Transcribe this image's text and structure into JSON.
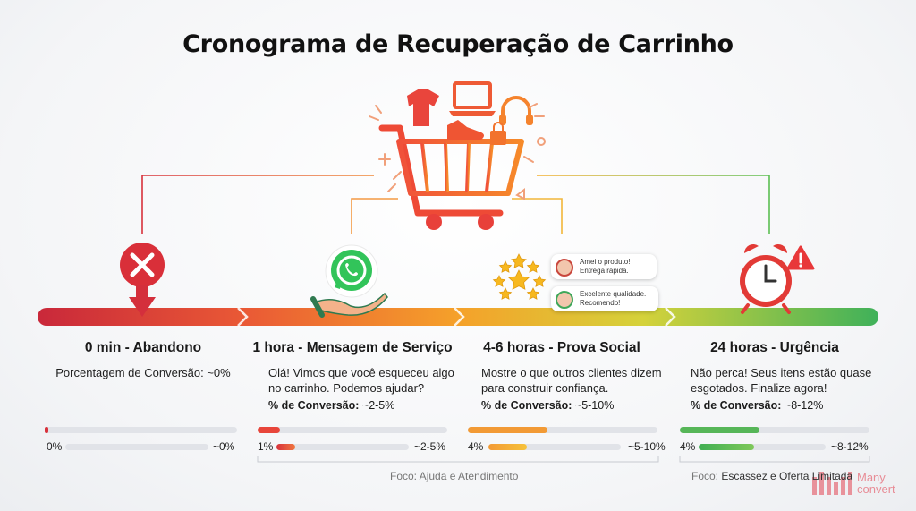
{
  "title": "Cronograma de Recuperação de Carrinho",
  "stages": [
    {
      "heading": "0 min - Abandono",
      "subtitle": "Porcentagem de Conversão: ~0%",
      "bar_start": "0%",
      "bar_end": "~0%",
      "start_fraction": 0.0,
      "icon": "error-x-icon"
    },
    {
      "heading": "1 hora - Mensagem de Serviço",
      "text": "Olá! Vimos que você esqueceu algo no carrinho. Podemos ajudar?",
      "conv_label": "% de Conversão:",
      "conv_value": " ~2-5%",
      "bar_start": "1%",
      "bar_end": "~2-5%",
      "start_fraction": 0.01,
      "range": [
        2,
        5
      ],
      "icon": "whatsapp-icon"
    },
    {
      "heading": "4-6 horas - Prova Social",
      "text": "Mostre o que outros clientes dizem para construir confiança.",
      "conv_label": "% de Conversão:",
      "conv_value": " ~5-10%",
      "bar_start": "4%",
      "bar_end": "~5-10%",
      "start_fraction": 0.04,
      "range": [
        5,
        10
      ],
      "icon": "stars-icon"
    },
    {
      "heading": "24 horas - Urgência",
      "text": "Não perca! Seus itens estão quase esgotados. Finalize agora!",
      "conv_label": "% de Conversão:",
      "conv_value": " ~8-12%",
      "bar_start": "4%",
      "bar_end": "~8-12%",
      "start_fraction": 0.04,
      "range": [
        8,
        12
      ],
      "icon": "alarm-clock-icon"
    }
  ],
  "reviews": [
    "Amei o produto! Entrega rápida.",
    "Excelente qualidade. Recomendo!"
  ],
  "focus_left": "Foco: Ajuda e Atendimento",
  "focus_right_prefix": "Foco: ",
  "focus_right": "Escassez e Oferta Limitada",
  "brand_line1": "Many",
  "brand_line2": "convert",
  "colors": {
    "red": "#d8313b",
    "orange": "#f0782d",
    "yellow": "#f6b12a",
    "green": "#45b55a"
  }
}
